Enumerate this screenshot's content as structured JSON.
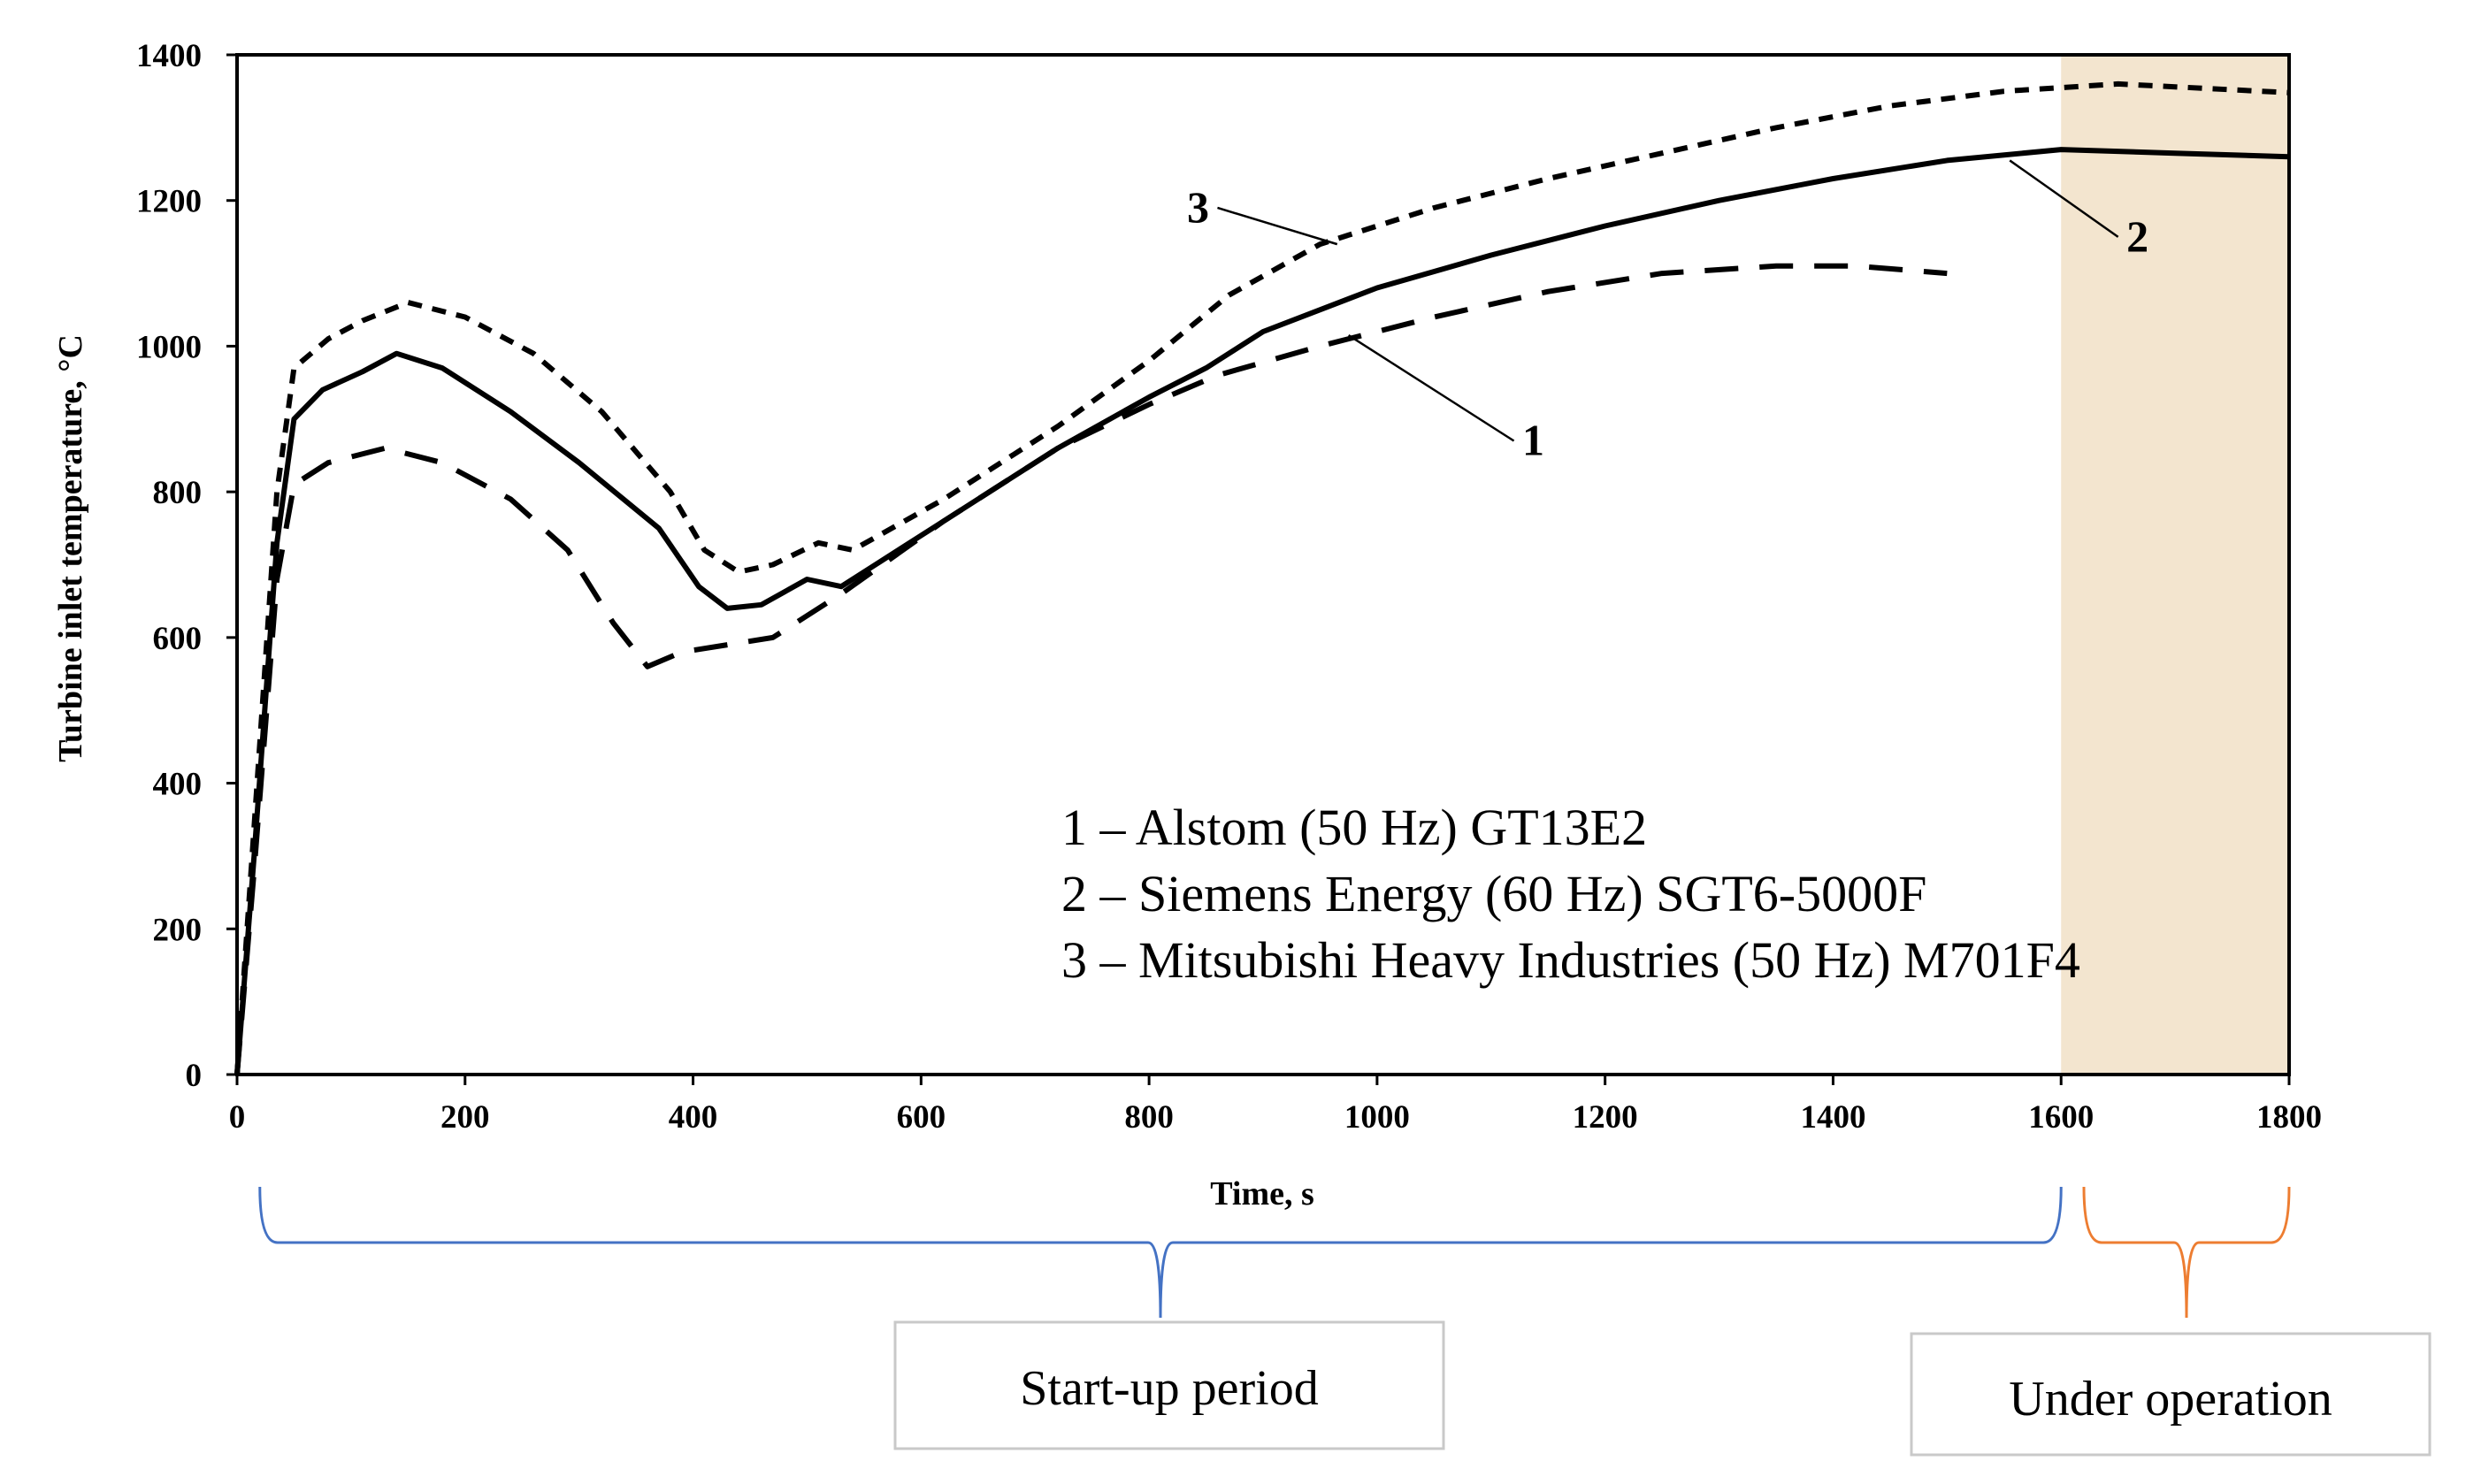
{
  "chart_data": {
    "type": "line",
    "title": "",
    "xlabel": "Time, s",
    "ylabel": "Turbine inlet temperature, °C",
    "xlim": [
      0,
      1800
    ],
    "ylim": [
      0,
      1400
    ],
    "x_ticks": [
      0,
      200,
      400,
      600,
      800,
      1000,
      1200,
      1400,
      1600,
      1800
    ],
    "y_ticks": [
      0,
      200,
      400,
      600,
      800,
      1000,
      1200,
      1400
    ],
    "grid": false,
    "shaded_region": {
      "x_range": [
        1600,
        1800
      ],
      "color": "#f3e5cf"
    },
    "series": [
      {
        "name": "1",
        "style": "long-dash",
        "points": [
          [
            0,
            0
          ],
          [
            15,
            280
          ],
          [
            35,
            680
          ],
          [
            50,
            810
          ],
          [
            80,
            840
          ],
          [
            130,
            860
          ],
          [
            180,
            840
          ],
          [
            240,
            790
          ],
          [
            290,
            720
          ],
          [
            330,
            620
          ],
          [
            360,
            560
          ],
          [
            390,
            580
          ],
          [
            430,
            590
          ],
          [
            470,
            600
          ],
          [
            530,
            660
          ],
          [
            620,
            760
          ],
          [
            720,
            860
          ],
          [
            800,
            920
          ],
          [
            860,
            960
          ],
          [
            950,
            1000
          ],
          [
            1050,
            1040
          ],
          [
            1150,
            1075
          ],
          [
            1250,
            1100
          ],
          [
            1350,
            1110
          ],
          [
            1420,
            1110
          ],
          [
            1500,
            1100
          ]
        ]
      },
      {
        "name": "2",
        "style": "solid",
        "points": [
          [
            0,
            0
          ],
          [
            15,
            300
          ],
          [
            35,
            730
          ],
          [
            50,
            900
          ],
          [
            75,
            940
          ],
          [
            110,
            965
          ],
          [
            140,
            990
          ],
          [
            180,
            970
          ],
          [
            240,
            910
          ],
          [
            300,
            840
          ],
          [
            370,
            750
          ],
          [
            405,
            670
          ],
          [
            430,
            640
          ],
          [
            460,
            645
          ],
          [
            500,
            680
          ],
          [
            530,
            670
          ],
          [
            620,
            760
          ],
          [
            720,
            860
          ],
          [
            800,
            930
          ],
          [
            850,
            970
          ],
          [
            900,
            1020
          ],
          [
            1000,
            1080
          ],
          [
            1100,
            1125
          ],
          [
            1200,
            1165
          ],
          [
            1300,
            1200
          ],
          [
            1400,
            1230
          ],
          [
            1500,
            1255
          ],
          [
            1600,
            1270
          ],
          [
            1700,
            1265
          ],
          [
            1800,
            1260
          ]
        ]
      },
      {
        "name": "3",
        "style": "short-dash",
        "points": [
          [
            0,
            0
          ],
          [
            15,
            340
          ],
          [
            35,
            800
          ],
          [
            50,
            970
          ],
          [
            80,
            1010
          ],
          [
            110,
            1035
          ],
          [
            150,
            1060
          ],
          [
            200,
            1040
          ],
          [
            260,
            990
          ],
          [
            320,
            910
          ],
          [
            380,
            800
          ],
          [
            410,
            720
          ],
          [
            440,
            690
          ],
          [
            470,
            700
          ],
          [
            510,
            730
          ],
          [
            540,
            720
          ],
          [
            620,
            790
          ],
          [
            720,
            890
          ],
          [
            800,
            980
          ],
          [
            870,
            1070
          ],
          [
            950,
            1140
          ],
          [
            1050,
            1190
          ],
          [
            1150,
            1230
          ],
          [
            1250,
            1265
          ],
          [
            1350,
            1300
          ],
          [
            1450,
            1330
          ],
          [
            1550,
            1350
          ],
          [
            1600,
            1355
          ],
          [
            1650,
            1360
          ],
          [
            1750,
            1352
          ],
          [
            1800,
            1348
          ]
        ]
      }
    ],
    "series_labels": [
      {
        "text": "1",
        "x": 1120,
        "y": 870,
        "pointer_to": [
          975,
          1015
        ]
      },
      {
        "text": "2",
        "x": 1650,
        "y": 1150,
        "pointer_to": [
          1555,
          1255
        ]
      },
      {
        "text": "3",
        "x": 860,
        "y": 1190,
        "pointer_to": [
          965,
          1140
        ]
      }
    ],
    "legend": {
      "placement": "lower-right",
      "entries": [
        "1 – Alstom (50 Hz) GT13E2",
        "2 – Siemens Energy (60 Hz) SGT6-5000F",
        "3 – Mitsubishi Heavy Industries (50 Hz) M701F4"
      ]
    },
    "periods": [
      {
        "label": "Start-up period",
        "x_range": [
          20,
          1600
        ],
        "color": "#4472c4"
      },
      {
        "label": "Under operation",
        "x_range": [
          1620,
          1800
        ],
        "color": "#ed7d31"
      }
    ]
  }
}
